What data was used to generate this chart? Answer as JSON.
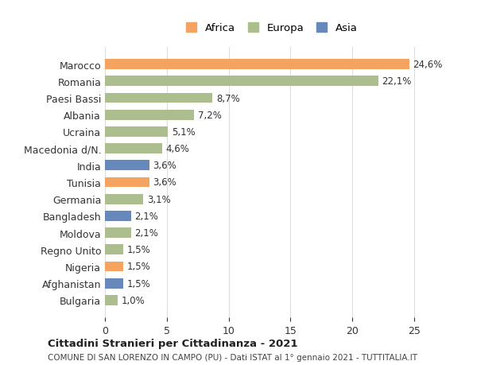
{
  "countries": [
    "Marocco",
    "Romania",
    "Paesi Bassi",
    "Albania",
    "Ucraina",
    "Macedonia d/N.",
    "India",
    "Tunisia",
    "Germania",
    "Bangladesh",
    "Moldova",
    "Regno Unito",
    "Nigeria",
    "Afghanistan",
    "Bulgaria"
  ],
  "values": [
    24.6,
    22.1,
    8.7,
    7.2,
    5.1,
    4.6,
    3.6,
    3.6,
    3.1,
    2.1,
    2.1,
    1.5,
    1.5,
    1.5,
    1.0
  ],
  "labels": [
    "24,6%",
    "22,1%",
    "8,7%",
    "7,2%",
    "5,1%",
    "4,6%",
    "3,6%",
    "3,6%",
    "3,1%",
    "2,1%",
    "2,1%",
    "1,5%",
    "1,5%",
    "1,5%",
    "1,0%"
  ],
  "continents": [
    "Africa",
    "Europa",
    "Europa",
    "Europa",
    "Europa",
    "Europa",
    "Asia",
    "Africa",
    "Europa",
    "Asia",
    "Europa",
    "Europa",
    "Africa",
    "Asia",
    "Europa"
  ],
  "colors": {
    "Africa": "#F4A460",
    "Europa": "#ADBE8E",
    "Asia": "#6688BB"
  },
  "title1": "Cittadini Stranieri per Cittadinanza - 2021",
  "title2": "COMUNE DI SAN LORENZO IN CAMPO (PU) - Dati ISTAT al 1° gennaio 2021 - TUTTITALIA.IT",
  "xlim": [
    0,
    27
  ],
  "xticks": [
    0,
    5,
    10,
    15,
    20,
    25
  ],
  "background_color": "#ffffff",
  "grid_color": "#dddddd",
  "bar_height": 0.6
}
